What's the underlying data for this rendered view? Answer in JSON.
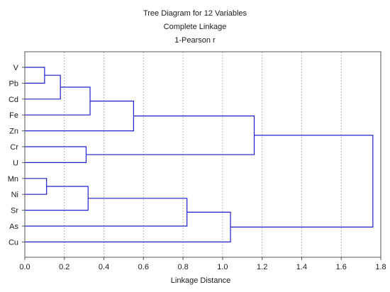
{
  "chart_data": {
    "type": "dendrogram",
    "title": "Tree Diagram for 12  Variables",
    "subtitle_1": "Complete Linkage",
    "subtitle_2": "1-Pearson r",
    "xlabel": "Linkage Distance",
    "xlim": [
      0.0,
      1.8
    ],
    "x_ticks": [
      "0.0",
      "0.2",
      "0.4",
      "0.6",
      "0.8",
      "1.0",
      "1.2",
      "1.4",
      "1.6",
      "1.8"
    ],
    "x_tick_values": [
      0.0,
      0.2,
      0.4,
      0.6,
      0.8,
      1.0,
      1.2,
      1.4,
      1.6,
      1.8
    ],
    "grid": true,
    "leaves": [
      "V",
      "Pb",
      "Cd",
      "Fe",
      "Zn",
      "Cr",
      "U",
      "Mn",
      "Ni",
      "Sr",
      "As",
      "Cu"
    ],
    "merges": [
      {
        "id": "m1",
        "children": [
          "V",
          "Pb"
        ],
        "height": 0.1
      },
      {
        "id": "m2",
        "children": [
          "m1",
          "Cd"
        ],
        "height": 0.18
      },
      {
        "id": "m3",
        "children": [
          "m2",
          "Fe"
        ],
        "height": 0.33
      },
      {
        "id": "m4",
        "children": [
          "m3",
          "Zn"
        ],
        "height": 0.55
      },
      {
        "id": "m5",
        "children": [
          "Cr",
          "U"
        ],
        "height": 0.31
      },
      {
        "id": "m6",
        "children": [
          "m4",
          "m5"
        ],
        "height": 1.16
      },
      {
        "id": "m7",
        "children": [
          "Mn",
          "Ni"
        ],
        "height": 0.11
      },
      {
        "id": "m8",
        "children": [
          "m7",
          "Sr"
        ],
        "height": 0.32
      },
      {
        "id": "m9",
        "children": [
          "m8",
          "As"
        ],
        "height": 0.82
      },
      {
        "id": "m10",
        "children": [
          "m9",
          "Cu"
        ],
        "height": 1.04
      },
      {
        "id": "m11",
        "children": [
          "m6",
          "m10"
        ],
        "height": 1.76
      }
    ],
    "line_color": "#1f1fd0"
  }
}
